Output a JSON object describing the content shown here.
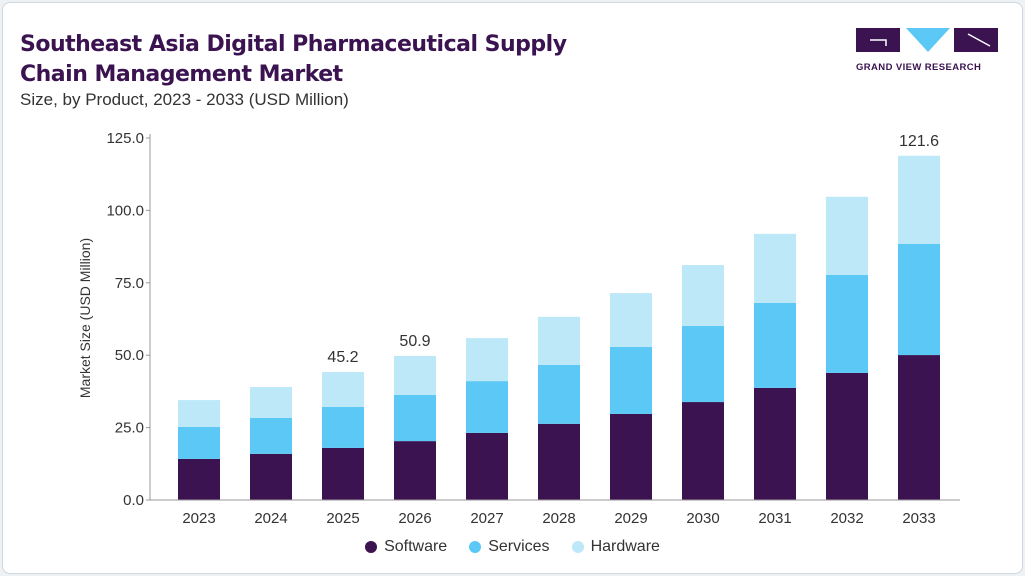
{
  "title_line1": "Southeast Asia Digital Pharmaceutical Supply",
  "title_line2": "Chain Management Market",
  "subtitle": "Size, by Product, 2023 - 2033 (USD Million)",
  "logo_text": "GRAND VIEW RESEARCH",
  "chart_data": {
    "type": "bar",
    "stacked": true,
    "categories": [
      "2023",
      "2024",
      "2025",
      "2026",
      "2027",
      "2028",
      "2029",
      "2030",
      "2031",
      "2032",
      "2033"
    ],
    "series": [
      {
        "name": "Software",
        "color": "#3a1350",
        "values": [
          14.5,
          16.3,
          18.4,
          20.8,
          23.7,
          26.9,
          30.4,
          34.6,
          39.6,
          44.9,
          51.2
        ]
      },
      {
        "name": "Services",
        "color": "#5bc8f5",
        "values": [
          11.3,
          12.7,
          14.5,
          16.3,
          18.3,
          20.8,
          23.7,
          26.9,
          30.0,
          34.6,
          39.3
        ]
      },
      {
        "name": "Hardware",
        "color": "#bde8f8",
        "values": [
          9.5,
          10.9,
          12.3,
          13.8,
          15.2,
          17.0,
          19.0,
          21.5,
          24.4,
          27.6,
          31.1
        ]
      }
    ],
    "data_labels": {
      "2025": "45.2",
      "2026": "50.9",
      "2033": "121.6"
    },
    "ylabel": "Market Size (USD Million)",
    "xlabel": "",
    "ylim": [
      0,
      125
    ],
    "yticks": [
      "0.0",
      "25.0",
      "50.0",
      "75.0",
      "100.0",
      "125.0"
    ],
    "grid": false,
    "legend_position": "bottom"
  }
}
